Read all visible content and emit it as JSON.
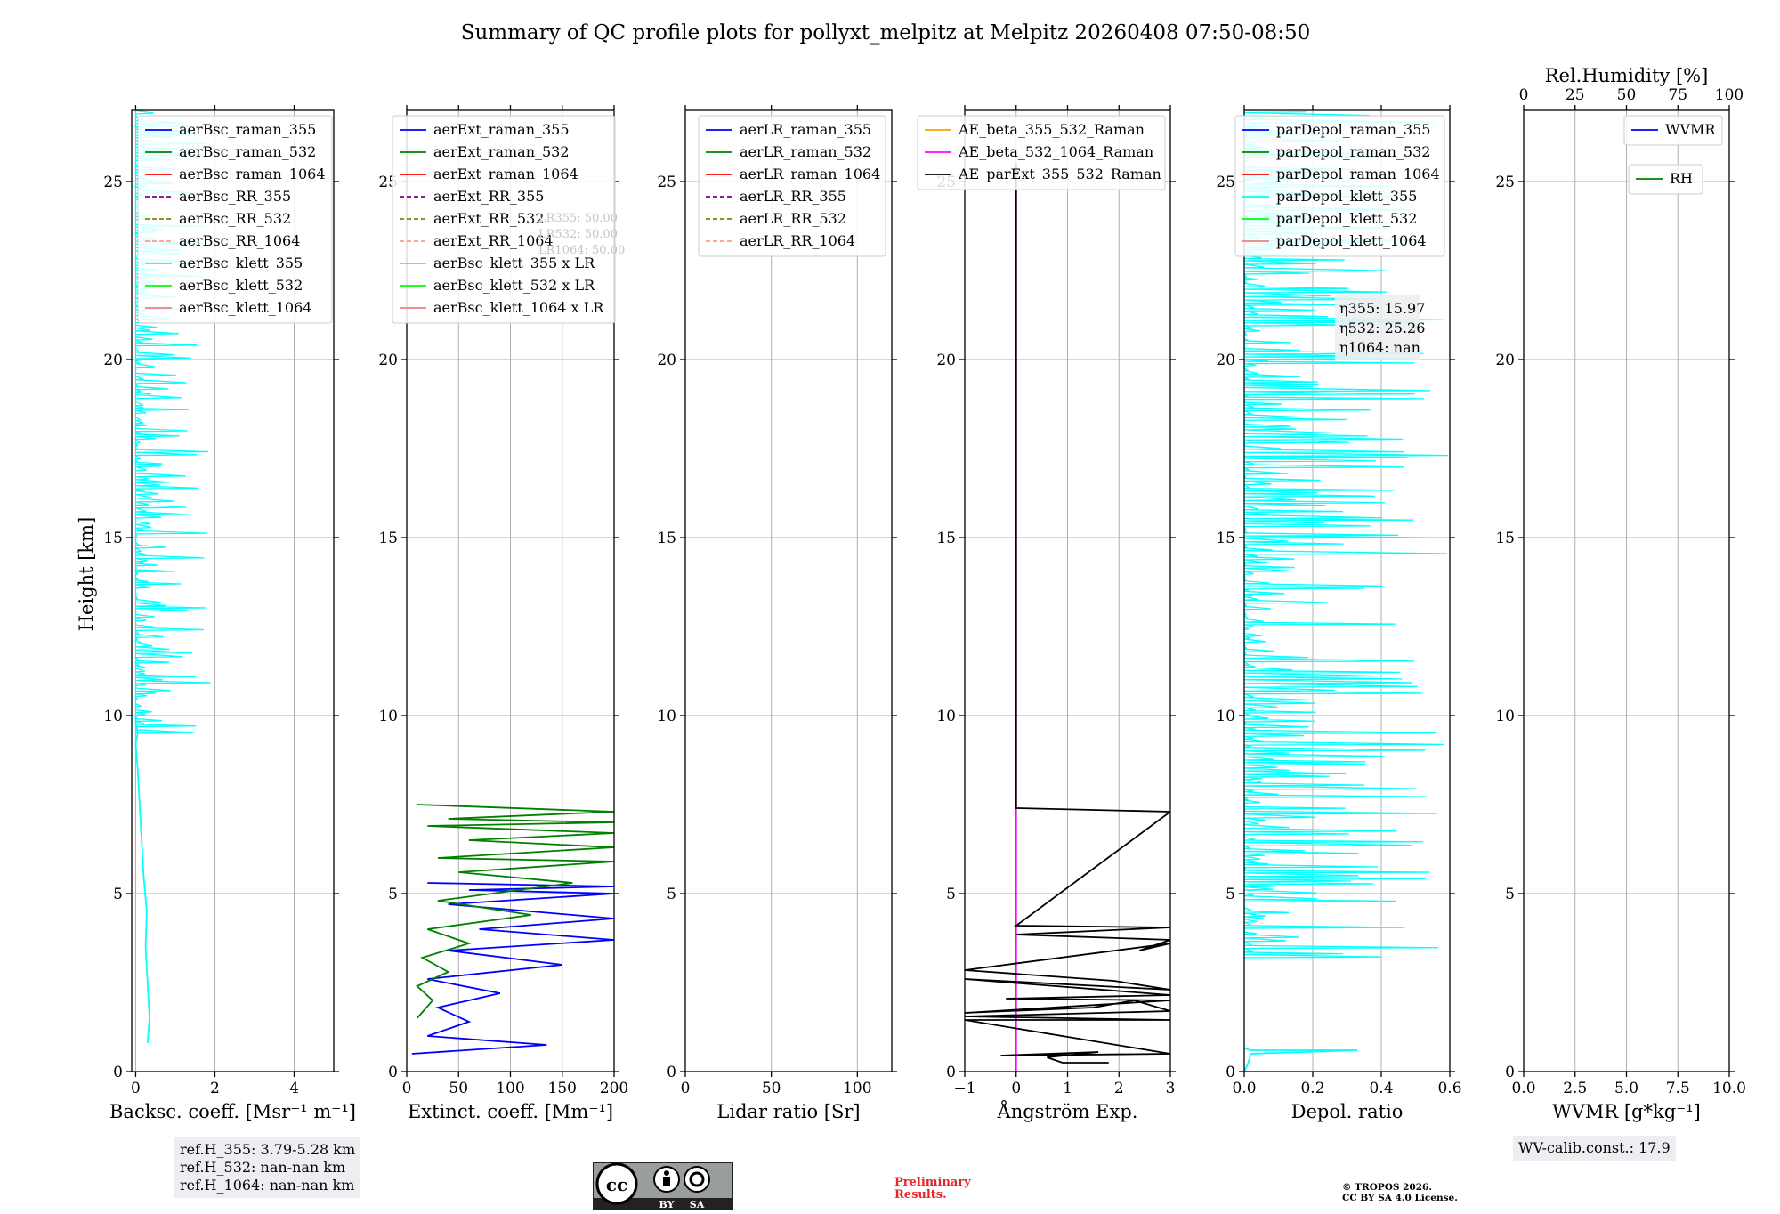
{
  "title": "Summary of QC profile plots for pollyxt_melpitz at Melpitz 20260408 07:50-08:50",
  "colors": {
    "raman_355": "#0000ff",
    "raman_532": "#008000",
    "raman_1064": "#ff0000",
    "rr_355": "#800080",
    "rr_532": "#808000",
    "rr_1064": "#ff9a8a",
    "klett_355": "#00ffff",
    "klett_532": "#00ff00",
    "klett_1064": "#f08080",
    "ae_beta_355_532": "#ffa500",
    "ae_beta_532_1064": "#ff00ff",
    "ae_parext": "#000000",
    "wvmr": "#0000ff",
    "rh": "#008000",
    "grid": "#b0b0b0",
    "footer_red": "#e8262a"
  },
  "chart_data": [
    {
      "id": "backscatter",
      "type": "line",
      "xlabel": "Backsc. coeff. [Msr⁻¹ m⁻¹]",
      "ylabel": "Height [km]",
      "xlim": [
        -0.1,
        5
      ],
      "ylim": [
        0,
        27
      ],
      "xticks": [
        "0",
        "2",
        "4"
      ],
      "xtick_values": [
        0,
        2,
        4
      ],
      "yticks": [
        "0",
        "5",
        "10",
        "15",
        "20",
        "25"
      ],
      "grid": true,
      "legend_position": "upper-right",
      "legend": [
        {
          "label": "aerBsc_raman_355",
          "color": "raman_355",
          "style": "solid"
        },
        {
          "label": "aerBsc_raman_532",
          "color": "raman_532",
          "style": "solid"
        },
        {
          "label": "aerBsc_raman_1064",
          "color": "raman_1064",
          "style": "solid"
        },
        {
          "label": "aerBsc_RR_355",
          "color": "rr_355",
          "style": "dashed"
        },
        {
          "label": "aerBsc_RR_532",
          "color": "rr_532",
          "style": "dashed"
        },
        {
          "label": "aerBsc_RR_1064",
          "color": "rr_1064",
          "style": "dashed"
        },
        {
          "label": "aerBsc_klett_355",
          "color": "klett_355",
          "style": "solid"
        },
        {
          "label": "aerBsc_klett_532",
          "color": "klett_532",
          "style": "solid"
        },
        {
          "label": "aerBsc_klett_1064",
          "color": "klett_1064",
          "style": "solid"
        }
      ],
      "series": [
        {
          "name": "aerBsc_klett_355",
          "color": "klett_355",
          "noise": {
            "scale": 1.9,
            "from": 9.5,
            "to": 27
          },
          "x": [
            0.3,
            0.35,
            0.3,
            0.25,
            0.28,
            0.2,
            0.15,
            0.1,
            0.05,
            0.0,
            0.05,
            0.0,
            0.0
          ],
          "y": [
            0.8,
            1.5,
            2.5,
            3.5,
            4.5,
            5.5,
            6.5,
            7.5,
            8.5,
            9.2,
            9.5,
            9.8,
            10.0
          ]
        }
      ]
    },
    {
      "id": "extinction",
      "type": "line",
      "xlabel": "Extinct. coeff. [Mm⁻¹]",
      "xlim": [
        0,
        200
      ],
      "ylim": [
        0,
        27
      ],
      "xticks": [
        "0",
        "50",
        "100",
        "150",
        "200"
      ],
      "xtick_values": [
        0,
        50,
        100,
        150,
        200
      ],
      "yticks": [
        "0",
        "5",
        "10",
        "15",
        "20",
        "25"
      ],
      "grid": true,
      "legend_position": "upper-left",
      "legend": [
        {
          "label": "aerExt_raman_355",
          "color": "raman_355",
          "style": "solid"
        },
        {
          "label": "aerExt_raman_532",
          "color": "raman_532",
          "style": "solid"
        },
        {
          "label": "aerExt_raman_1064",
          "color": "raman_1064",
          "style": "solid"
        },
        {
          "label": "aerExt_RR_355",
          "color": "rr_355",
          "style": "dashed"
        },
        {
          "label": "aerExt_RR_532",
          "color": "rr_532",
          "style": "dashed"
        },
        {
          "label": "aerExt_RR_1064",
          "color": "rr_1064",
          "style": "dashed"
        },
        {
          "label": "aerBsc_klett_355 x LR",
          "color": "klett_355",
          "style": "solid"
        },
        {
          "label": "aerBsc_klett_532 x LR",
          "color": "klett_532",
          "style": "solid"
        },
        {
          "label": "aerBsc_klett_1064 x LR",
          "color": "klett_1064",
          "style": "solid"
        }
      ],
      "series": [
        {
          "name": "aerExt_raman_355",
          "color": "raman_355",
          "x": [
            5,
            135,
            20,
            60,
            30,
            90,
            20,
            150,
            40,
            200,
            70,
            200,
            40,
            200,
            60,
            200,
            20
          ],
          "y": [
            0.5,
            0.75,
            1.0,
            1.4,
            1.8,
            2.2,
            2.6,
            3.0,
            3.4,
            3.7,
            4.0,
            4.3,
            4.7,
            5.0,
            5.1,
            5.2,
            5.3
          ]
        },
        {
          "name": "aerExt_raman_532",
          "color": "raman_532",
          "x": [
            10,
            25,
            10,
            40,
            15,
            60,
            20,
            120,
            30,
            160,
            50,
            200,
            30,
            200,
            60,
            200,
            20,
            200,
            40,
            200,
            10
          ],
          "y": [
            1.5,
            2.0,
            2.4,
            2.8,
            3.2,
            3.6,
            4.0,
            4.4,
            4.8,
            5.3,
            5.6,
            5.9,
            6.0,
            6.3,
            6.5,
            6.7,
            6.9,
            7.0,
            7.1,
            7.3,
            7.5
          ]
        }
      ],
      "annotations": [
        "LR355: 50.00",
        "LR532: 50.00",
        "LR1064: 50.00"
      ]
    },
    {
      "id": "lidar_ratio",
      "type": "line",
      "xlabel": "Lidar ratio [Sr]",
      "xlim": [
        0,
        120
      ],
      "ylim": [
        0,
        27
      ],
      "xticks": [
        "0",
        "50",
        "100"
      ],
      "xtick_values": [
        0,
        50,
        100
      ],
      "yticks": [
        "0",
        "5",
        "10",
        "15",
        "20",
        "25"
      ],
      "grid": true,
      "legend_position": "upper-right",
      "legend": [
        {
          "label": "aerLR_raman_355",
          "color": "raman_355",
          "style": "solid"
        },
        {
          "label": "aerLR_raman_532",
          "color": "raman_532",
          "style": "solid"
        },
        {
          "label": "aerLR_raman_1064",
          "color": "raman_1064",
          "style": "solid"
        },
        {
          "label": "aerLR_RR_355",
          "color": "rr_355",
          "style": "dashed"
        },
        {
          "label": "aerLR_RR_532",
          "color": "rr_532",
          "style": "dashed"
        },
        {
          "label": "aerLR_RR_1064",
          "color": "rr_1064",
          "style": "dashed"
        }
      ],
      "series": []
    },
    {
      "id": "angstrom",
      "type": "line",
      "xlabel": "Ångström Exp.",
      "xlim": [
        -1,
        3
      ],
      "ylim": [
        0,
        27
      ],
      "xticks": [
        "−1",
        "0",
        "1",
        "2",
        "3"
      ],
      "xtick_values": [
        -1,
        0,
        1,
        2,
        3
      ],
      "yticks": [
        "0",
        "5",
        "10",
        "15",
        "20",
        "25"
      ],
      "grid": true,
      "legend_position": "upper-right",
      "legend": [
        {
          "label": "AE_beta_355_532_Raman",
          "color": "ae_beta_355_532",
          "style": "solid"
        },
        {
          "label": "AE_beta_532_1064_Raman",
          "color": "ae_beta_532_1064",
          "style": "solid"
        },
        {
          "label": "AE_parExt_355_532_Raman",
          "color": "ae_parext",
          "style": "solid"
        }
      ],
      "series": [
        {
          "name": "AE_beta_532_1064_Raman",
          "color": "ae_beta_532_1064",
          "x": [
            0,
            0
          ],
          "y": [
            0,
            25.3
          ]
        },
        {
          "name": "AE_parExt_355_532_Raman",
          "color": "ae_parext",
          "x": [
            0,
            0,
            3,
            0,
            3,
            0,
            3,
            2.4,
            3,
            -1,
            1.9,
            3,
            -1,
            3,
            -0.2,
            3,
            -1,
            1.5,
            2.3,
            3,
            -1.0,
            3,
            -1,
            3,
            -0.3,
            1.6,
            0.6,
            0.9,
            1.8
          ],
          "y": [
            25.5,
            7.4,
            7.3,
            4.1,
            4.05,
            3.85,
            3.7,
            3.4,
            3.6,
            2.85,
            2.55,
            2.3,
            2.6,
            2.15,
            2.05,
            2.0,
            1.65,
            1.8,
            2.0,
            1.7,
            1.55,
            1.45,
            1.45,
            0.5,
            0.45,
            0.55,
            0.4,
            0.25,
            0.25
          ]
        }
      ]
    },
    {
      "id": "depol",
      "type": "line",
      "xlabel": "Depol. ratio",
      "xlim": [
        0,
        0.6
      ],
      "ylim": [
        0,
        27
      ],
      "xticks": [
        "0.0",
        "0.2",
        "0.4",
        "0.6"
      ],
      "xtick_values": [
        0,
        0.2,
        0.4,
        0.6
      ],
      "yticks": [
        "0",
        "5",
        "10",
        "15",
        "20",
        "25"
      ],
      "grid": true,
      "legend_position": "upper-left",
      "legend": [
        {
          "label": "parDepol_raman_355",
          "color": "raman_355",
          "style": "solid"
        },
        {
          "label": "parDepol_raman_532",
          "color": "raman_532",
          "style": "solid"
        },
        {
          "label": "parDepol_raman_1064",
          "color": "raman_1064",
          "style": "solid"
        },
        {
          "label": "parDepol_klett_355",
          "color": "klett_355",
          "style": "solid"
        },
        {
          "label": "parDepol_klett_532",
          "color": "klett_532",
          "style": "solid"
        },
        {
          "label": "parDepol_klett_1064",
          "color": "klett_1064",
          "style": "solid"
        }
      ],
      "series": [
        {
          "name": "parDepol_klett_355",
          "color": "klett_355",
          "noise": {
            "scale": 0.6,
            "from": 3.2,
            "to": 27
          },
          "x": [
            0.0,
            0.01,
            0.02,
            0.33,
            0.02,
            0.0
          ],
          "y": [
            0.0,
            0.2,
            0.5,
            0.6,
            0.6,
            0.65
          ]
        }
      ],
      "annotations": [
        "η355: 15.97",
        "η532: 25.26",
        "η1064: nan"
      ]
    },
    {
      "id": "wv",
      "type": "line",
      "xlabel": "WVMR [g*kg⁻¹]",
      "top_xlabel": "Rel.Humidity [%]",
      "xlim": [
        0,
        10
      ],
      "ylim": [
        0,
        27
      ],
      "xticks": [
        "0.0",
        "2.5",
        "5.0",
        "7.5",
        "10.0"
      ],
      "xtick_values": [
        0,
        2.5,
        5,
        7.5,
        10
      ],
      "top_xticks": [
        "0",
        "25",
        "50",
        "75",
        "100"
      ],
      "yticks": [
        "0",
        "5",
        "10",
        "15",
        "20",
        "25"
      ],
      "grid": true,
      "legend_position": "upper-right",
      "legend": [
        {
          "label": "WVMR",
          "color": "wvmr",
          "style": "solid"
        }
      ],
      "legend2": [
        {
          "label": "RH",
          "color": "rh",
          "style": "solid"
        }
      ],
      "series": []
    }
  ],
  "panel_text": {
    "lr_355": "LR355: 50.00",
    "lr_532": "LR532: 50.00",
    "lr_1064": "LR1064: 50.00",
    "eta_355": "η355: 15.97",
    "eta_532": "η532: 25.26",
    "eta_1064": "η1064: nan"
  },
  "ref_heights": [
    "ref.H_355: 3.79-5.28 km",
    "ref.H_532: nan-nan km",
    "ref.H_1064: nan-nan km"
  ],
  "wv_calib": "WV-calib.const.: 17.9",
  "preliminary": [
    "Preliminary",
    "Results."
  ],
  "copyright": [
    "© TROPOS 2026.",
    "CC BY SA 4.0 License."
  ],
  "license_badge": {
    "cc": "cc",
    "by": "BY",
    "sa": "SA"
  }
}
